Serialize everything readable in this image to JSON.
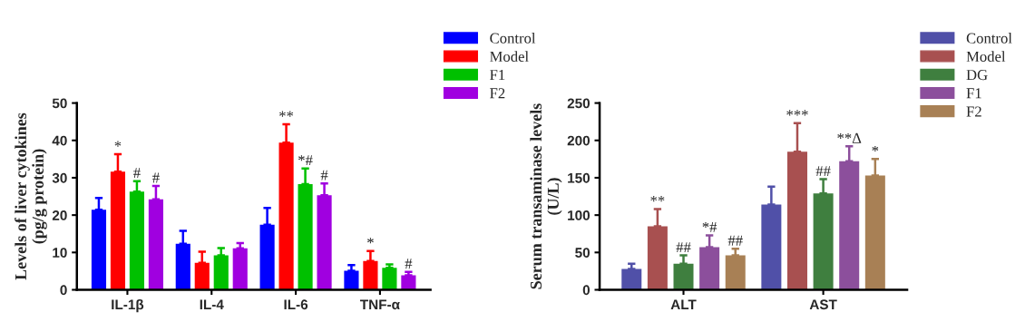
{
  "chart_data": [
    {
      "type": "bar",
      "ylabel": "Levels of liver cytokines\n(pg/g protein)",
      "categories": [
        "IL-1β",
        "IL-4",
        "IL-6",
        "TNF-α"
      ],
      "ylim": [
        0,
        50
      ],
      "yticks": [
        0,
        10,
        20,
        30,
        40,
        50
      ],
      "grid": false,
      "legend": "top right",
      "series": [
        {
          "name": "Control",
          "color": "#0000ff",
          "values": [
            21.4,
            12.3,
            17.4,
            5.1
          ],
          "errors": [
            [
              21.4,
              24.6
            ],
            [
              12.3,
              15.8
            ],
            [
              17.4,
              21.9
            ],
            [
              5.1,
              6.6
            ]
          ],
          "value_labels": [
            null,
            null,
            null,
            null
          ]
        },
        {
          "name": "Model",
          "color": "#ff0000",
          "values": [
            31.6,
            7.2,
            39.4,
            7.7
          ],
          "errors": [
            [
              31.6,
              36.3
            ],
            [
              7.2,
              10.2
            ],
            [
              39.4,
              44.3
            ],
            [
              7.7,
              10.4
            ]
          ],
          "value_labels": [
            "*",
            null,
            "**",
            "*"
          ]
        },
        {
          "name": "F1",
          "color": "#00c000",
          "values": [
            26.3,
            9.2,
            28.3,
            5.9
          ],
          "errors": [
            [
              26.3,
              29.1
            ],
            [
              9.2,
              11.2
            ],
            [
              28.3,
              32.5
            ],
            [
              5.9,
              6.8
            ]
          ],
          "value_labels": [
            "#",
            null,
            "*#",
            null
          ]
        },
        {
          "name": "F2",
          "color": "#a000e0",
          "values": [
            24.2,
            11.1,
            25.3,
            3.9
          ],
          "errors": [
            [
              24.2,
              27.8
            ],
            [
              11.1,
              12.5
            ],
            [
              25.3,
              28.5
            ],
            [
              3.9,
              4.8
            ]
          ],
          "value_labels": [
            "#",
            null,
            "#",
            "#"
          ]
        }
      ]
    },
    {
      "type": "bar",
      "ylabel": "Serum transaminase levels\n(U/L)",
      "categories": [
        "ALT",
        "AST"
      ],
      "ylim": [
        0,
        250
      ],
      "yticks": [
        0,
        50,
        100,
        150,
        200,
        250
      ],
      "grid": false,
      "legend": "top right",
      "series": [
        {
          "name": "Control",
          "color": "#5050a8",
          "values": [
            28,
            114
          ],
          "errors": [
            [
              28,
              35
            ],
            [
              114,
              138
            ]
          ],
          "value_labels": [
            null,
            null
          ]
        },
        {
          "name": "Model",
          "color": "#a85050",
          "values": [
            85,
            185
          ],
          "errors": [
            [
              85,
              108
            ],
            [
              185,
              223
            ]
          ],
          "value_labels": [
            "**",
            "***"
          ]
        },
        {
          "name": "DG",
          "color": "#3f7f3f",
          "values": [
            35,
            129
          ],
          "errors": [
            [
              35,
              46
            ],
            [
              129,
              148
            ]
          ],
          "value_labels": [
            "##",
            "##"
          ]
        },
        {
          "name": "F1",
          "color": "#8c4f9c",
          "values": [
            57,
            172
          ],
          "errors": [
            [
              57,
              73
            ],
            [
              172,
              192
            ]
          ],
          "value_labels": [
            "*#",
            "**Δ"
          ]
        },
        {
          "name": "F2",
          "color": "#a88055",
          "values": [
            46,
            153
          ],
          "errors": [
            [
              46,
              55
            ],
            [
              153,
              175
            ]
          ],
          "value_labels": [
            "##",
            "*"
          ]
        }
      ]
    }
  ]
}
